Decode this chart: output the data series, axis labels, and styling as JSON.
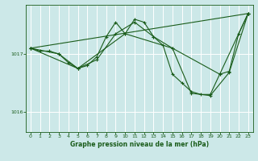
{
  "title": "Graphe pression niveau de la mer (hPa)",
  "bg_color": "#cce8e8",
  "grid_color": "#ffffff",
  "line_color": "#1a5c1a",
  "xlim": [
    -0.5,
    23.5
  ],
  "ylim": [
    1015.65,
    1017.85
  ],
  "yticks": [
    1016,
    1017
  ],
  "xticks": [
    0,
    1,
    2,
    3,
    4,
    5,
    6,
    7,
    8,
    9,
    10,
    11,
    12,
    13,
    14,
    15,
    16,
    17,
    18,
    19,
    20,
    21,
    22,
    23
  ],
  "series": [
    {
      "x": [
        0,
        1,
        2,
        3,
        4,
        5,
        6,
        7,
        8,
        9,
        10,
        11,
        12,
        13,
        14,
        15,
        16,
        17,
        18,
        19,
        20,
        21,
        22,
        23
      ],
      "y": [
        1017.1,
        1017.05,
        1017.05,
        1017.0,
        1016.85,
        1016.75,
        1016.8,
        1016.95,
        1017.3,
        1017.55,
        1017.35,
        1017.6,
        1017.55,
        1017.3,
        1017.15,
        1016.65,
        1016.5,
        1016.35,
        1016.3,
        1016.3,
        1016.65,
        1016.7,
        1017.35,
        1017.7
      ]
    },
    {
      "x": [
        0,
        3,
        5,
        7,
        9,
        11,
        13,
        15,
        17,
        19,
        21,
        23
      ],
      "y": [
        1017.1,
        1017.0,
        1016.75,
        1016.9,
        1017.35,
        1017.55,
        1017.3,
        1017.1,
        1016.32,
        1016.28,
        1016.68,
        1017.7
      ]
    },
    {
      "x": [
        0,
        5,
        10,
        15,
        20,
        23
      ],
      "y": [
        1017.1,
        1016.75,
        1017.35,
        1017.1,
        1016.65,
        1017.7
      ]
    },
    {
      "x": [
        0,
        23
      ],
      "y": [
        1017.1,
        1017.7
      ]
    }
  ]
}
